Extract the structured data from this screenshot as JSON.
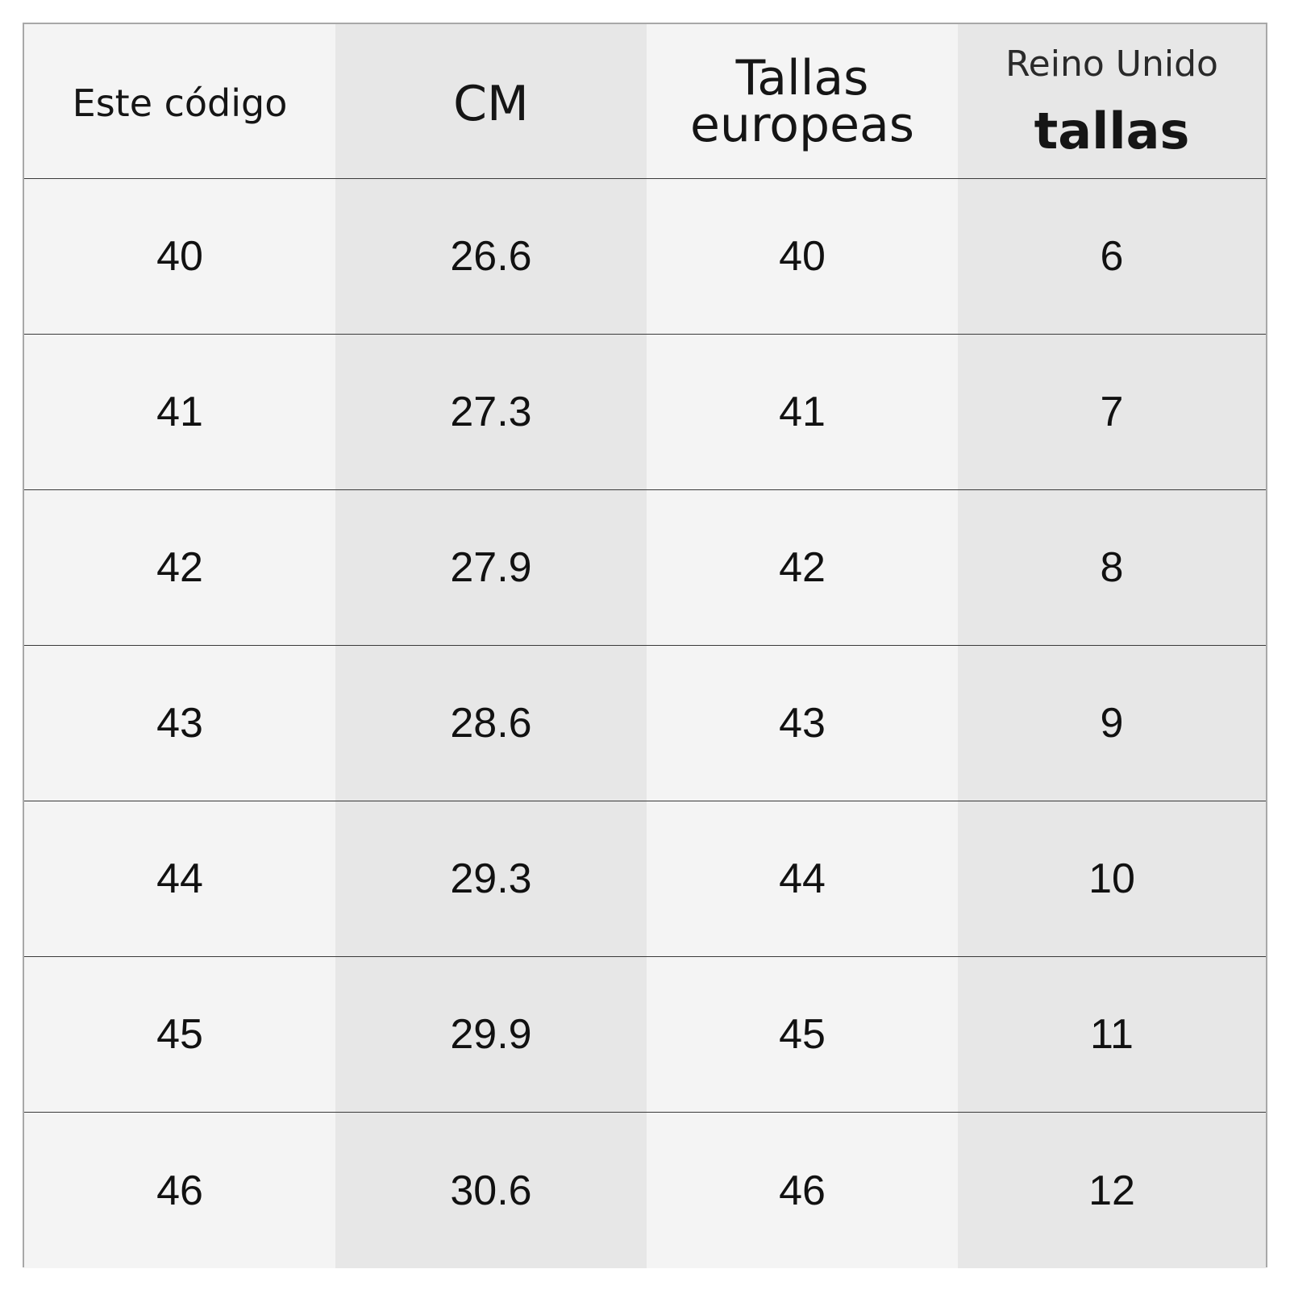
{
  "table": {
    "headers": {
      "code": "Este código",
      "cm": "CM",
      "eu_line1": "Tallas",
      "eu_line2": "europeas",
      "uk_line1": "Reino Unido",
      "uk_line2": "tallas"
    },
    "rows": [
      {
        "code": "40",
        "cm": "26.6",
        "eu": "40",
        "uk": "6"
      },
      {
        "code": "41",
        "cm": "27.3",
        "eu": "41",
        "uk": "7"
      },
      {
        "code": "42",
        "cm": "27.9",
        "eu": "42",
        "uk": "8"
      },
      {
        "code": "43",
        "cm": "28.6",
        "eu": "43",
        "uk": "9"
      },
      {
        "code": "44",
        "cm": "29.3",
        "eu": "44",
        "uk": "10"
      },
      {
        "code": "45",
        "cm": "29.9",
        "eu": "45",
        "uk": "11"
      },
      {
        "code": "46",
        "cm": "30.6",
        "eu": "46",
        "uk": "12"
      }
    ]
  },
  "colors": {
    "light_column": "#f4f4f4",
    "dark_column": "#e7e7e7",
    "row_divider": "#3a3a3a",
    "outer_border": "#a8a8a8",
    "text": "#111111"
  }
}
